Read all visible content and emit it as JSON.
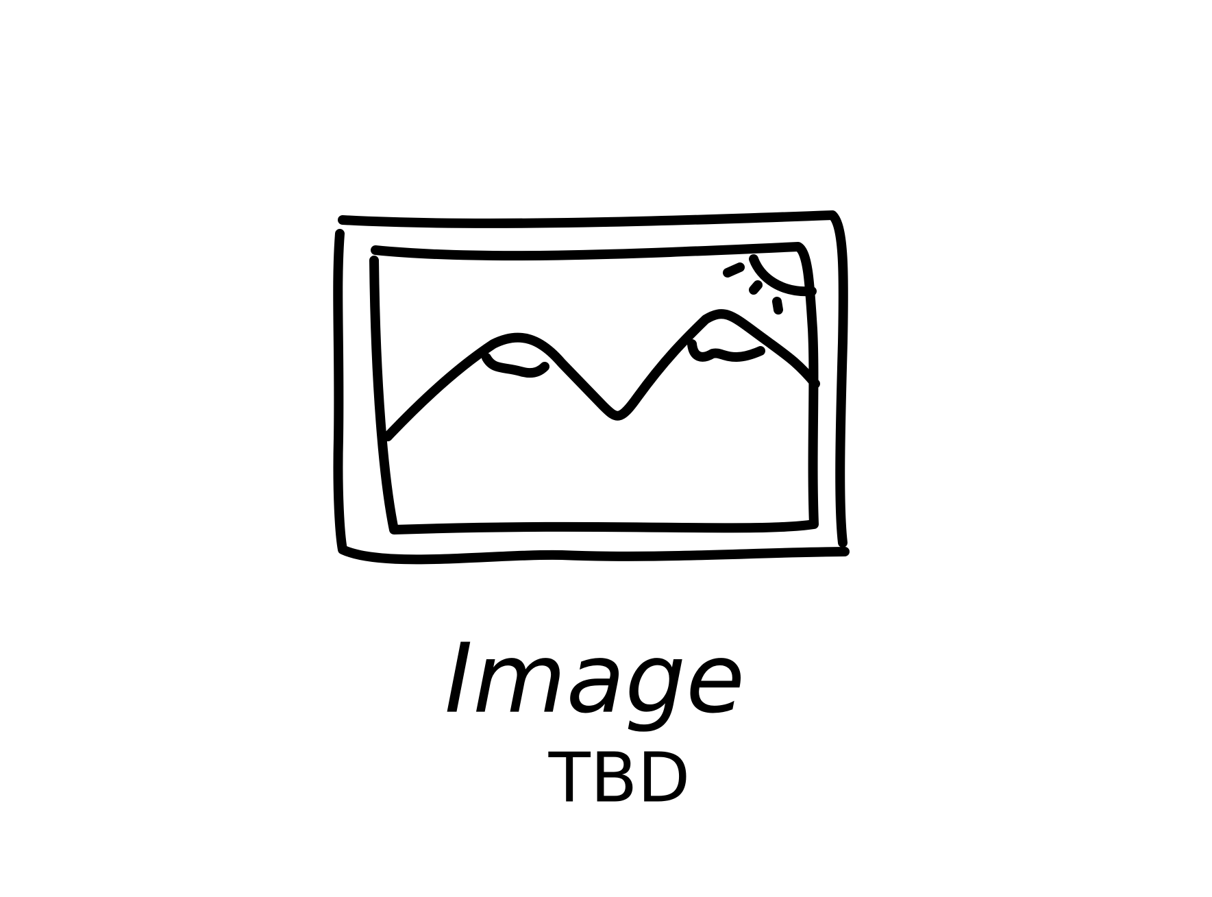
{
  "placeholder": {
    "title": "Image",
    "subtitle": "TBD"
  }
}
